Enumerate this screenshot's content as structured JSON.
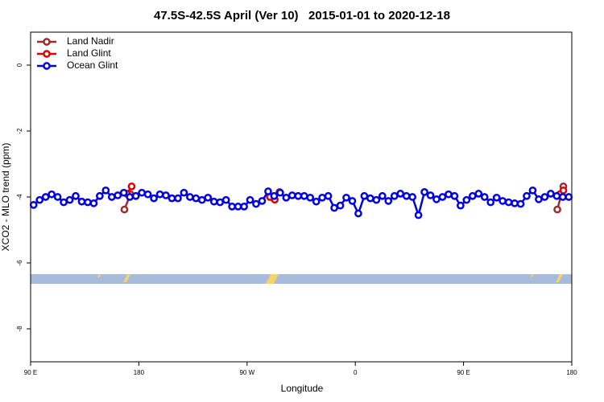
{
  "chart_data": {
    "type": "line",
    "title": "47.5S-42.5S April (Ver 10)   2015-01-01 to 2020-12-18",
    "x_label": "Longitude",
    "y_label": "XCO2 - MLO trend (ppm)",
    "xlim": [
      90,
      540
    ],
    "ylim": [
      -9,
      1
    ],
    "xticks": [
      {
        "value": 90,
        "label": "90 E"
      },
      {
        "value": 180,
        "label": "180"
      },
      {
        "value": 270,
        "label": "90 W"
      },
      {
        "value": 360,
        "label": "0"
      },
      {
        "value": 450,
        "label": "90 E"
      },
      {
        "value": 540,
        "label": "180"
      }
    ],
    "yticks": [
      0,
      -2,
      -4,
      -6,
      -8
    ],
    "legend": "top-left",
    "series": [
      {
        "name": "Land Nadir",
        "color": "#9b2d2d",
        "x": [
          168,
          173,
          230,
          290,
          297,
          400,
          528,
          533
        ],
        "values": [
          -4.38,
          -3.92,
          null,
          -4.0,
          -3.85,
          null,
          -4.38,
          -3.68
        ]
      },
      {
        "name": "Land Glint",
        "color": "#e00000",
        "x": [
          170,
          174,
          240,
          289,
          293,
          400,
          530,
          533
        ],
        "values": [
          -3.9,
          -3.68,
          null,
          -4.0,
          -4.08,
          null,
          -3.92,
          -3.8
        ]
      },
      {
        "name": "Ocean Glint",
        "color": "#0000e0",
        "x": [
          92.5,
          97.5,
          102.5,
          107.5,
          112.5,
          117.5,
          122.5,
          127.5,
          132.5,
          137.5,
          142.5,
          147.5,
          152.5,
          157.5,
          162.5,
          167.5,
          172.5,
          177.5,
          182.5,
          187.5,
          192.5,
          197.5,
          202.5,
          207.5,
          212.5,
          217.5,
          222.5,
          227.5,
          232.5,
          237.5,
          242.5,
          247.5,
          252.5,
          257.5,
          262.5,
          267.5,
          272.5,
          277.5,
          282.5,
          287.5,
          292.5,
          297.5,
          302.5,
          307.5,
          312.5,
          317.5,
          322.5,
          327.5,
          332.5,
          337.5,
          342.5,
          347.5,
          352.5,
          357.5,
          362.5,
          367.5,
          372.5,
          377.5,
          382.5,
          387.5,
          392.5,
          397.5,
          402.5,
          407.5,
          412.5,
          417.5,
          422.5,
          427.5,
          432.5,
          437.5,
          442.5,
          447.5,
          452.5,
          457.5,
          462.5,
          467.5,
          472.5,
          477.5,
          482.5,
          487.5,
          492.5,
          497.5,
          502.5,
          507.5,
          512.5,
          517.5,
          522.5,
          527.5,
          532.5,
          537.5
        ],
        "values": [
          -4.24,
          -4.09,
          -4.0,
          -3.92,
          -4.0,
          -4.16,
          -4.09,
          -3.97,
          -4.14,
          -4.16,
          -4.19,
          -3.97,
          -3.8,
          -4.0,
          -3.95,
          -3.87,
          -4.0,
          -3.97,
          -3.87,
          -3.92,
          -4.04,
          -3.92,
          -3.95,
          -4.04,
          -4.04,
          -3.87,
          -4.0,
          -4.04,
          -4.09,
          -4.02,
          -4.14,
          -4.16,
          -4.09,
          -4.29,
          -4.29,
          -4.29,
          -4.09,
          -4.21,
          -4.12,
          -3.83,
          -3.97,
          -3.87,
          -4.02,
          -3.95,
          -3.97,
          -3.97,
          -4.02,
          -4.14,
          -4.02,
          -3.97,
          -4.33,
          -4.26,
          -4.02,
          -4.12,
          -4.5,
          -3.97,
          -4.04,
          -4.09,
          -3.97,
          -4.12,
          -3.97,
          -3.9,
          -3.97,
          -4.0,
          -4.55,
          -3.85,
          -3.95,
          -4.07,
          -4.0,
          -3.92,
          -3.97,
          -4.26,
          -4.09,
          -3.97,
          -3.9,
          -4.0,
          -4.16,
          -4.02,
          -4.12,
          -4.16,
          -4.19,
          -4.21,
          -3.97,
          -3.8,
          -4.07,
          -4.0,
          -3.9,
          -3.97,
          -4.0,
          -4.0
        ]
      }
    ]
  }
}
